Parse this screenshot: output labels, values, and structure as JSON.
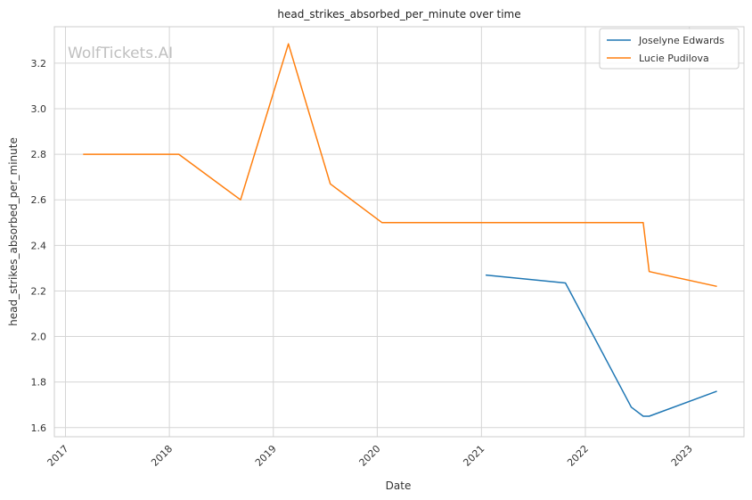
{
  "chart_data": {
    "type": "line",
    "title": "head_strikes_absorbed_per_minute over time",
    "xlabel": "Date",
    "ylabel": "head_strikes_absorbed_per_minute",
    "watermark": "WolfTickets.AI",
    "x_ticks": [
      "2017",
      "2018",
      "2019",
      "2020",
      "2021",
      "2022",
      "2023"
    ],
    "y_ticks": [
      "1.6",
      "1.8",
      "2.0",
      "2.2",
      "2.4",
      "2.6",
      "2.8",
      "3.0",
      "3.2"
    ],
    "xlim": [
      "2016-11-23",
      "2023-07-12"
    ],
    "ylim": [
      1.56,
      3.36
    ],
    "grid": true,
    "legend_position": "top-right",
    "series": [
      {
        "name": "Joselyne Edwards",
        "color": "#1f77b4",
        "points": [
          [
            "2021-01-16",
            2.27
          ],
          [
            "2021-10-23",
            2.235
          ],
          [
            "2022-06-11",
            1.69
          ],
          [
            "2022-07-23",
            1.65
          ],
          [
            "2022-08-13",
            1.65
          ],
          [
            "2023-04-08",
            1.76
          ]
        ]
      },
      {
        "name": "Lucie Pudilova",
        "color": "#ff7f0e",
        "points": [
          [
            "2017-03-04",
            2.8
          ],
          [
            "2018-02-03",
            2.8
          ],
          [
            "2018-09-08",
            2.6
          ],
          [
            "2019-02-23",
            3.285
          ],
          [
            "2019-07-20",
            2.67
          ],
          [
            "2020-01-18",
            2.5
          ],
          [
            "2022-07-23",
            2.5
          ],
          [
            "2022-08-13",
            2.285
          ],
          [
            "2023-04-08",
            2.22
          ]
        ]
      }
    ]
  }
}
